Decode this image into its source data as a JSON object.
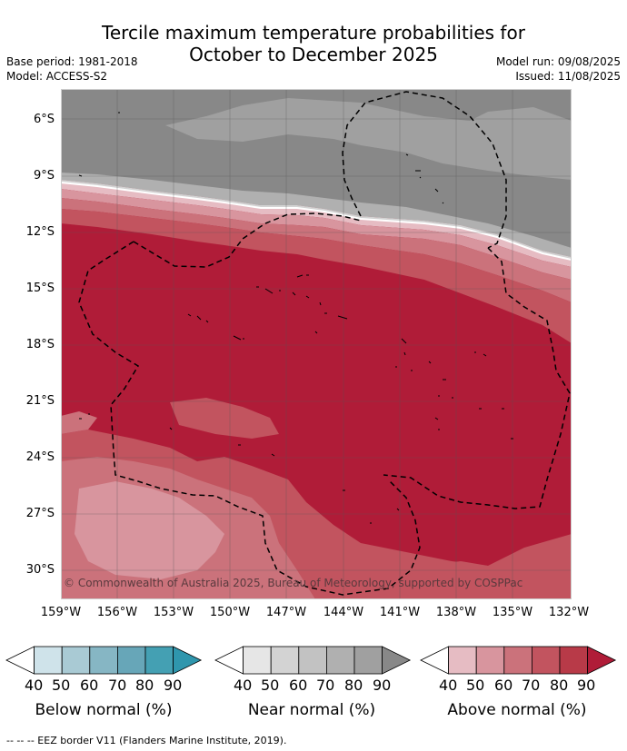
{
  "title_line1": "Tercile maximum temperature probabilities for",
  "title_line2": "October to December 2025",
  "base_period": "Base period: 1981-2018",
  "model": "Model: ACCESS-S2",
  "model_run": "Model run: 09/08/2025",
  "issued": "Issued: 11/08/2025",
  "copyright": "© Commonwealth of Australia 2025, Bureau of Meteorology, supported by COSPPac",
  "footnote": "--  --  -- EEZ border V11 (Flanders Marine Institute, 2019).",
  "lat_labels": [
    "6°S",
    "9°S",
    "12°S",
    "15°S",
    "18°S",
    "21°S",
    "24°S",
    "27°S",
    "30°S"
  ],
  "lon_labels": [
    "159°W",
    "156°W",
    "153°W",
    "150°W",
    "147°W",
    "144°W",
    "141°W",
    "138°W",
    "135°W",
    "132°W"
  ],
  "legends": {
    "below": {
      "title": "Below normal (%)",
      "ticks": [
        "40",
        "50",
        "60",
        "70",
        "80",
        "90"
      ],
      "colors": [
        "#ffffff",
        "#cfe3ea",
        "#a9cad4",
        "#86b6c4",
        "#67a6b8",
        "#44a0b3",
        "#2f96ad"
      ]
    },
    "near": {
      "title": "Near normal (%)",
      "ticks": [
        "40",
        "50",
        "60",
        "70",
        "80",
        "90"
      ],
      "colors": [
        "#ffffff",
        "#e6e6e6",
        "#d3d3d3",
        "#c2c2c2",
        "#b0b0b0",
        "#a0a0a0",
        "#888888"
      ]
    },
    "above": {
      "title": "Above normal (%)",
      "ticks": [
        "40",
        "50",
        "60",
        "70",
        "80",
        "90"
      ],
      "colors": [
        "#ffffff",
        "#e6bcc3",
        "#d8959e",
        "#cb727b",
        "#c2545f",
        "#b83a48",
        "#b01c38"
      ]
    }
  }
}
